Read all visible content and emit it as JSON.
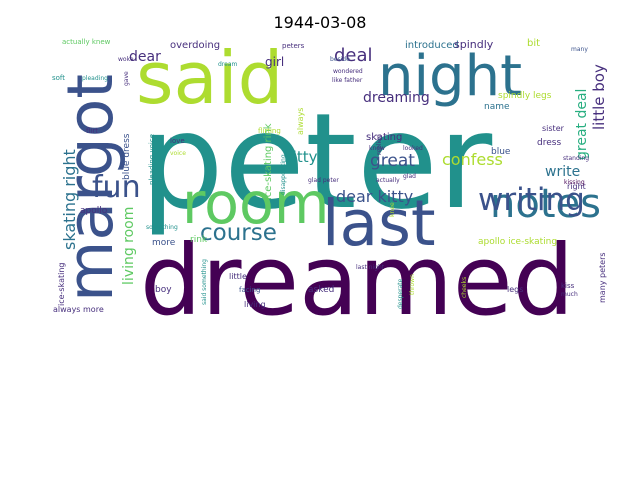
{
  "title": "1944-03-08",
  "palette": {
    "dark_purple": "#440154",
    "indigo": "#472f7d",
    "blue": "#3b528b",
    "steel": "#2c728e",
    "teal": "#21918c",
    "sea_green": "#28ae80",
    "green": "#5ec962",
    "lime": "#addc30"
  },
  "words": [
    {
      "text": "peter",
      "color": "teal"
    },
    {
      "text": "dreamed",
      "color": "dark_purple"
    },
    {
      "text": "said",
      "color": "lime"
    },
    {
      "text": "margot",
      "color": "blue"
    },
    {
      "text": "night",
      "color": "steel"
    },
    {
      "text": "room",
      "color": "green"
    },
    {
      "text": "last",
      "color": "blue"
    },
    {
      "text": "notes",
      "color": "steel"
    },
    {
      "text": "writing",
      "color": "blue"
    },
    {
      "text": "fun",
      "color": "blue"
    },
    {
      "text": "course",
      "color": "steel"
    },
    {
      "text": "dreaming",
      "color": "indigo"
    },
    {
      "text": "deal",
      "color": "indigo"
    },
    {
      "text": "dear kitty",
      "color": "blue"
    },
    {
      "text": "great",
      "color": "blue"
    },
    {
      "text": "confess",
      "color": "lime"
    },
    {
      "text": "kitty",
      "color": "teal"
    },
    {
      "text": "write",
      "color": "steel"
    },
    {
      "text": "skating right",
      "color": "steel"
    },
    {
      "text": "living room",
      "color": "green"
    },
    {
      "text": "little boy",
      "color": "indigo"
    },
    {
      "text": "great deal",
      "color": "sea_green"
    },
    {
      "text": "dear",
      "color": "indigo"
    },
    {
      "text": "overdoing",
      "color": "indigo"
    },
    {
      "text": "introduced",
      "color": "steel"
    },
    {
      "text": "spindly",
      "color": "indigo"
    },
    {
      "text": "bit",
      "color": "lime"
    },
    {
      "text": "girl",
      "color": "indigo"
    },
    {
      "text": "ice-skating rink",
      "color": "green"
    },
    {
      "text": "actually knew",
      "color": "green"
    },
    {
      "text": "peters",
      "color": "indigo"
    },
    {
      "text": "many",
      "color": "blue"
    },
    {
      "text": "woke",
      "color": "indigo"
    },
    {
      "text": "beside",
      "color": "blue"
    },
    {
      "text": "dream",
      "color": "teal"
    },
    {
      "text": "wondered",
      "color": "indigo"
    },
    {
      "text": "like father",
      "color": "indigo"
    },
    {
      "text": "spindly legs",
      "color": "lime"
    },
    {
      "text": "name",
      "color": "steel"
    },
    {
      "text": "soft",
      "color": "teal"
    },
    {
      "text": "pleading",
      "color": "teal"
    },
    {
      "text": "gave",
      "color": "indigo"
    },
    {
      "text": "blue dress",
      "color": "blue"
    },
    {
      "text": "flirt",
      "color": "indigo"
    },
    {
      "text": "pleading voice",
      "color": "teal"
    },
    {
      "text": "flirting",
      "color": "lime"
    },
    {
      "text": "always",
      "color": "lime"
    },
    {
      "text": "love",
      "color": "indigo"
    },
    {
      "text": "voice",
      "color": "lime"
    },
    {
      "text": "disappointing",
      "color": "teal"
    },
    {
      "text": "replied",
      "color": "indigo"
    },
    {
      "text": "looked",
      "color": "indigo"
    },
    {
      "text": "glad peter",
      "color": "indigo"
    },
    {
      "text": "glad",
      "color": "indigo"
    },
    {
      "text": "skating",
      "color": "indigo"
    },
    {
      "text": "blue",
      "color": "blue"
    },
    {
      "text": "sister",
      "color": "indigo"
    },
    {
      "text": "dress",
      "color": "indigo"
    },
    {
      "text": "standing",
      "color": "indigo"
    },
    {
      "text": "right",
      "color": "indigo"
    },
    {
      "text": "kissing",
      "color": "dark_purple"
    },
    {
      "text": "apollo",
      "color": "indigo"
    },
    {
      "text": "apollo ice-skating",
      "color": "lime"
    },
    {
      "text": "rink",
      "color": "green"
    },
    {
      "text": "something",
      "color": "teal"
    },
    {
      "text": "more",
      "color": "blue"
    },
    {
      "text": "ice-skating",
      "color": "indigo"
    },
    {
      "text": "boy",
      "color": "indigo"
    },
    {
      "text": "little",
      "color": "indigo"
    },
    {
      "text": "said something",
      "color": "teal"
    },
    {
      "text": "last night",
      "color": "indigo"
    },
    {
      "text": "asked",
      "color": "indigo"
    },
    {
      "text": "facing",
      "color": "blue"
    },
    {
      "text": "living",
      "color": "indigo"
    },
    {
      "text": "desperate",
      "color": "teal"
    },
    {
      "text": "legs",
      "color": "indigo"
    },
    {
      "text": "kiss",
      "color": "indigo"
    },
    {
      "text": "much",
      "color": "indigo"
    },
    {
      "text": "many peters",
      "color": "indigo"
    },
    {
      "text": "always more",
      "color": "indigo"
    },
    {
      "text": "knee",
      "color": "lime"
    },
    {
      "text": "knew",
      "color": "indigo"
    },
    {
      "text": "actually",
      "color": "indigo"
    },
    {
      "text": "cheeks",
      "color": "lime"
    },
    {
      "text": "thrown",
      "color": "lime"
    }
  ]
}
